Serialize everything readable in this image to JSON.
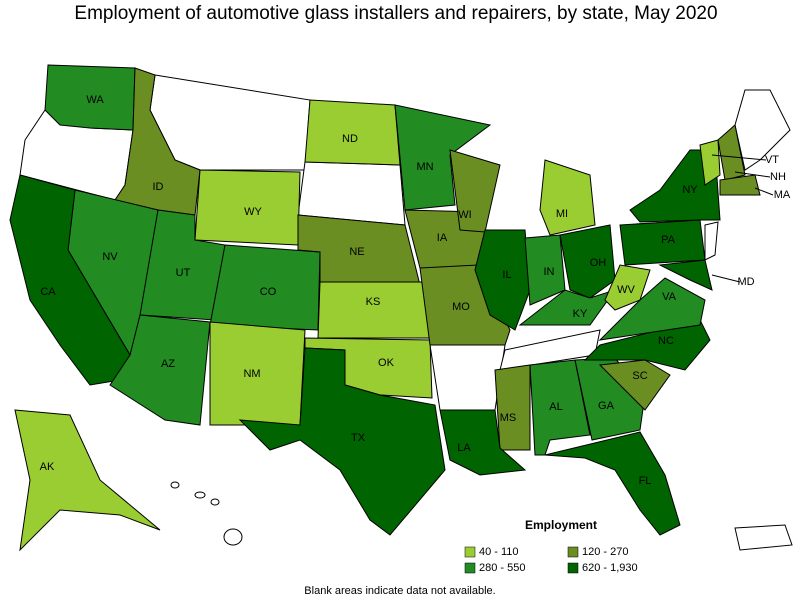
{
  "title": "Employment of automotive glass installers and repairers, by state, May 2020",
  "legend": {
    "title": "Employment",
    "items": [
      {
        "label": "40 - 110",
        "color": "#9acd32"
      },
      {
        "label": "120 - 270",
        "color": "#6b8e23"
      },
      {
        "label": "280 - 550",
        "color": "#228b22"
      },
      {
        "label": "620 - 1,930",
        "color": "#006400"
      }
    ]
  },
  "states": [
    {
      "label": "WA",
      "color": "#228b22"
    },
    {
      "label": "ID",
      "color": "#6b8e23"
    },
    {
      "label": "NV",
      "color": "#228b22"
    },
    {
      "label": "CA",
      "color": "#006400"
    },
    {
      "label": "UT",
      "color": "#228b22"
    },
    {
      "label": "AZ",
      "color": "#228b22"
    },
    {
      "label": "WY",
      "color": "#9acd32"
    },
    {
      "label": "CO",
      "color": "#228b22"
    },
    {
      "label": "NM",
      "color": "#9acd32"
    },
    {
      "label": "ND",
      "color": "#9acd32"
    },
    {
      "label": "NE",
      "color": "#6b8e23"
    },
    {
      "label": "KS",
      "color": "#9acd32"
    },
    {
      "label": "OK",
      "color": "#9acd32"
    },
    {
      "label": "TX",
      "color": "#006400"
    },
    {
      "label": "MN",
      "color": "#228b22"
    },
    {
      "label": "IA",
      "color": "#6b8e23"
    },
    {
      "label": "MO",
      "color": "#6b8e23"
    },
    {
      "label": "WI",
      "color": "#6b8e23"
    },
    {
      "label": "IL",
      "color": "#006400"
    },
    {
      "label": "MI",
      "color": "#9acd32"
    },
    {
      "label": "IN",
      "color": "#228b22"
    },
    {
      "label": "OH",
      "color": "#006400"
    },
    {
      "label": "KY",
      "color": "#228b22"
    },
    {
      "label": "MS",
      "color": "#6b8e23"
    },
    {
      "label": "AL",
      "color": "#228b22"
    },
    {
      "label": "GA",
      "color": "#228b22"
    },
    {
      "label": "FL",
      "color": "#006400"
    },
    {
      "label": "SC",
      "color": "#6b8e23"
    },
    {
      "label": "NC",
      "color": "#006400"
    },
    {
      "label": "VA",
      "color": "#228b22"
    },
    {
      "label": "WV",
      "color": "#9acd32"
    },
    {
      "label": "PA",
      "color": "#006400"
    },
    {
      "label": "NY",
      "color": "#006400"
    },
    {
      "label": "MD",
      "color": "#006400"
    },
    {
      "label": "VT",
      "color": "#9acd32"
    },
    {
      "label": "NH",
      "color": "#6b8e23"
    },
    {
      "label": "MA",
      "color": "#6b8e23"
    },
    {
      "label": "AK",
      "color": "#9acd32"
    },
    {
      "label": "LA",
      "color": "#006400"
    }
  ],
  "note": "Blank areas indicate data not available."
}
